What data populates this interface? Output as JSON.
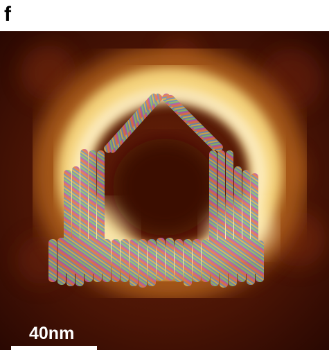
{
  "panel": {
    "label": "f"
  },
  "scale_bar": {
    "label": "40nm"
  },
  "colors": {
    "background": "#3a0e03",
    "ring_glow": "#f4d27a",
    "ring_core": "#fff3cc",
    "helix_base": "#6f8fb8",
    "helix_stripes": [
      "#e07a4a",
      "#d9b64f",
      "#8fbf6a",
      "#c25aa6",
      "#5aa6d8"
    ]
  }
}
